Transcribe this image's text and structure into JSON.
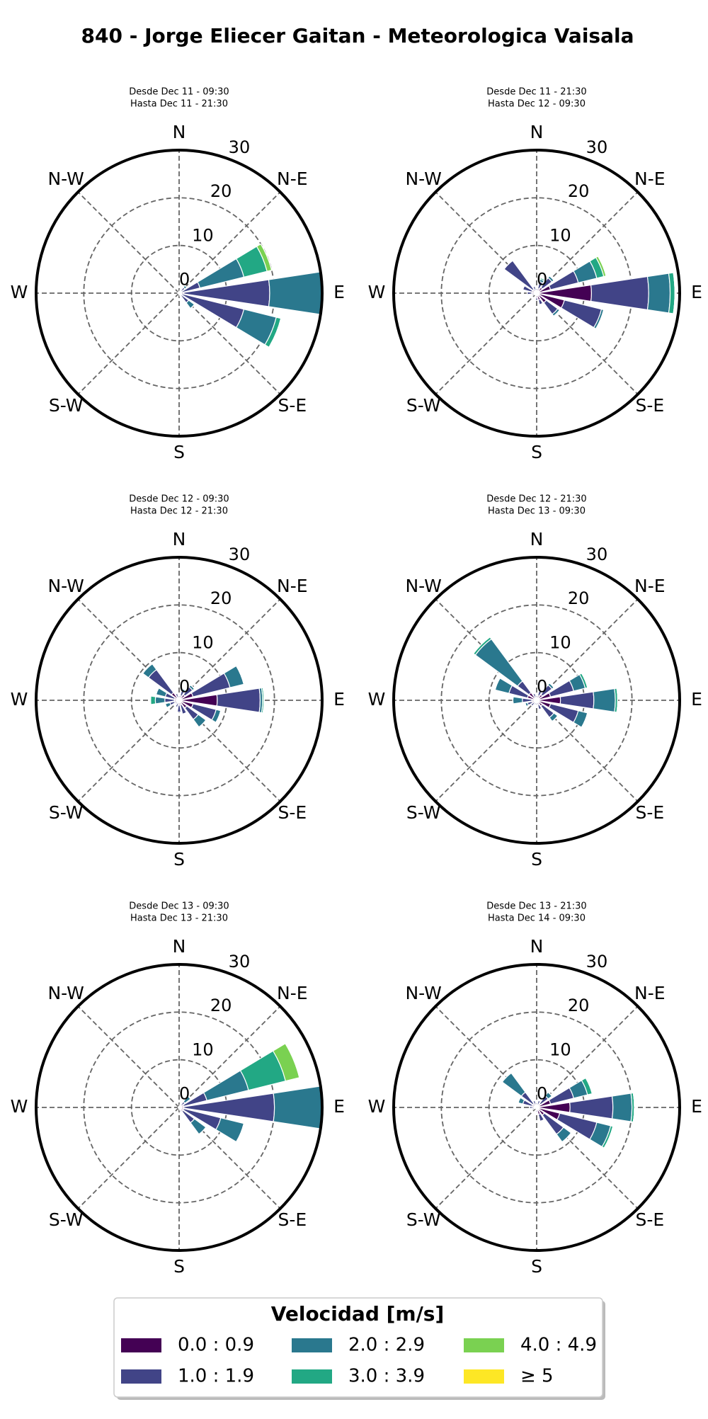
{
  "title": "840 - Jorge Eliecer Gaitan - Meteorologica Vaisala",
  "legend_title": "Velocidad [m/s]",
  "chart_data": [
    {
      "type": "windrose",
      "subtitle": [
        "Desde Dec 11 - 09:30",
        "Hasta Dec 11 - 21:30"
      ],
      "categories": [
        "N",
        null,
        "N-E",
        null,
        "E",
        null,
        "S-E",
        null,
        "S",
        null,
        "S-W",
        null,
        "W",
        null,
        "N-W",
        null
      ],
      "ylim": [
        0,
        30
      ],
      "yticks": [
        0,
        10,
        20,
        30
      ],
      "series": [
        {
          "name": "0.0 : 0.9",
          "color": "#440154",
          "values": [
            0.3,
            0.3,
            0.5,
            0.5,
            1,
            0.5,
            0.5,
            0.3,
            0.3,
            0.2,
            0.2,
            0.2,
            0.3,
            0.3,
            0.3,
            0.2
          ]
        },
        {
          "name": "1.0 : 1.9",
          "color": "#414487",
          "values": [
            0,
            0.5,
            1,
            4,
            18,
            13.5,
            2,
            0.5,
            0,
            0,
            0,
            0,
            0,
            0,
            0,
            0
          ]
        },
        {
          "name": "2.0 : 2.9",
          "color": "#2a788e",
          "values": [
            0,
            0,
            0.5,
            9.5,
            11,
            7,
            1.5,
            0,
            0,
            0,
            0,
            0,
            0,
            0,
            0,
            0
          ]
        },
        {
          "name": "3.0 : 3.9",
          "color": "#22a884",
          "values": [
            0,
            0,
            0,
            5,
            0,
            1,
            0,
            0,
            0,
            0,
            0,
            0,
            0,
            0,
            0,
            0
          ]
        },
        {
          "name": "4.0 : 4.9",
          "color": "#7ad151",
          "values": [
            0,
            0,
            0,
            1,
            0,
            0,
            0,
            0,
            0,
            0,
            0,
            0,
            0,
            0,
            0,
            0
          ]
        },
        {
          "name": "≥ 5",
          "color": "#fde725",
          "values": [
            0,
            0,
            0,
            0,
            0,
            0,
            0,
            0,
            0,
            0,
            0,
            0,
            0,
            0,
            0,
            0
          ]
        }
      ]
    },
    {
      "type": "windrose",
      "subtitle": [
        "Desde Dec 11 - 21:30",
        "Hasta Dec 12 - 09:30"
      ],
      "categories": [
        "N",
        null,
        "N-E",
        null,
        "E",
        null,
        "S-E",
        null,
        "S",
        null,
        "S-W",
        null,
        "W",
        null,
        "N-W",
        null
      ],
      "ylim": [
        0,
        30
      ],
      "yticks": [
        0,
        10,
        20,
        30
      ],
      "series": [
        {
          "name": "0.0 : 0.9",
          "color": "#440154",
          "values": [
            0.5,
            1,
            1.5,
            3,
            11.5,
            6,
            2.5,
            1.5,
            1,
            0.5,
            0.5,
            0.5,
            1,
            1,
            1,
            0.5
          ]
        },
        {
          "name": "1.0 : 1.9",
          "color": "#414487",
          "values": [
            0.5,
            1.5,
            2.5,
            6,
            12,
            8,
            3,
            1,
            0.5,
            0,
            0,
            0.5,
            1,
            2,
            7.5,
            1
          ]
        },
        {
          "name": "2.0 : 2.9",
          "color": "#2a788e",
          "values": [
            0,
            0.5,
            0.5,
            4,
            4.5,
            0.5,
            0.5,
            0,
            0,
            0,
            0,
            0,
            0,
            0,
            0,
            0
          ]
        },
        {
          "name": "3.0 : 3.9",
          "color": "#22a884",
          "values": [
            0,
            0.3,
            0,
            1.5,
            1,
            0,
            0,
            0,
            0,
            0,
            0,
            0,
            0,
            0,
            0,
            0
          ]
        },
        {
          "name": "4.0 : 4.9",
          "color": "#7ad151",
          "values": [
            0,
            0,
            0,
            0.5,
            0,
            0,
            0,
            0,
            0,
            0,
            0,
            0,
            0,
            0,
            0,
            0
          ]
        },
        {
          "name": "≥ 5",
          "color": "#fde725",
          "values": [
            0,
            0,
            0,
            0,
            0,
            0,
            0,
            0,
            0,
            0,
            0,
            0,
            0,
            0,
            0,
            0
          ]
        }
      ]
    },
    {
      "type": "windrose",
      "subtitle": [
        "Desde Dec 12 - 09:30",
        "Hasta Dec 12 - 21:30"
      ],
      "categories": [
        "N",
        null,
        "N-E",
        null,
        "E",
        null,
        "S-E",
        null,
        "S",
        null,
        "S-W",
        null,
        "W",
        null,
        "N-W",
        null
      ],
      "ylim": [
        0,
        30
      ],
      "yticks": [
        0,
        10,
        20,
        30
      ],
      "series": [
        {
          "name": "0.0 : 0.9",
          "color": "#440154",
          "values": [
            0.5,
            1,
            1.5,
            3,
            8,
            3,
            2,
            1,
            1,
            0.5,
            0.5,
            1,
            1,
            1,
            2,
            0.5
          ]
        },
        {
          "name": "1.0 : 1.9",
          "color": "#414487",
          "values": [
            0.5,
            1,
            2,
            8,
            9,
            5,
            3,
            2,
            1.5,
            1,
            0.5,
            1,
            2,
            2,
            6,
            1
          ]
        },
        {
          "name": "2.0 : 2.9",
          "color": "#2a788e",
          "values": [
            0,
            0.5,
            0.5,
            3,
            0.5,
            1,
            2,
            0,
            0,
            0,
            0,
            1,
            2,
            2,
            1.5,
            0
          ]
        },
        {
          "name": "3.0 : 3.9",
          "color": "#22a884",
          "values": [
            0,
            0,
            0,
            0,
            0.3,
            0,
            0,
            0,
            0,
            0,
            0,
            0,
            1,
            0,
            0,
            0
          ]
        },
        {
          "name": "4.0 : 4.9",
          "color": "#7ad151",
          "values": [
            0,
            0,
            0,
            0,
            0,
            0,
            0,
            0,
            0,
            0,
            0,
            0,
            0,
            0,
            0,
            0
          ]
        },
        {
          "name": "≥ 5",
          "color": "#fde725",
          "values": [
            0,
            0,
            0,
            0,
            0,
            0,
            0,
            0,
            0,
            0,
            0,
            0,
            0,
            0,
            0,
            0
          ]
        }
      ]
    },
    {
      "type": "windrose",
      "subtitle": [
        "Desde Dec 12 - 21:30",
        "Hasta Dec 13 - 09:30"
      ],
      "categories": [
        "N",
        null,
        "N-E",
        null,
        "E",
        null,
        "S-E",
        null,
        "S",
        null,
        "S-W",
        null,
        "W",
        null,
        "N-W",
        null
      ],
      "ylim": [
        0,
        30
      ],
      "yticks": [
        0,
        10,
        20,
        30
      ],
      "series": [
        {
          "name": "0.0 : 0.9",
          "color": "#440154",
          "values": [
            0.5,
            1,
            1.5,
            3,
            5,
            3,
            1.5,
            1,
            0.5,
            0.5,
            0.5,
            1,
            1,
            2,
            2,
            0.5
          ]
        },
        {
          "name": "1.0 : 1.9",
          "color": "#414487",
          "values": [
            0.5,
            1,
            2.5,
            5,
            7,
            6,
            3,
            1,
            0.5,
            0.5,
            1,
            1,
            2,
            4,
            3,
            1
          ]
        },
        {
          "name": "2.0 : 2.9",
          "color": "#2a788e",
          "values": [
            0,
            0,
            0.5,
            2.5,
            4.5,
            2,
            1,
            0,
            0,
            0,
            0,
            0.5,
            2,
            3,
            11,
            0
          ]
        },
        {
          "name": "3.0 : 3.9",
          "color": "#22a884",
          "values": [
            0,
            0,
            0,
            0.5,
            0.5,
            0,
            0,
            0,
            0,
            0,
            0,
            0,
            0,
            0,
            0.5,
            0
          ]
        },
        {
          "name": "4.0 : 4.9",
          "color": "#7ad151",
          "values": [
            0,
            0,
            0,
            0,
            0,
            0,
            0,
            0,
            0,
            0,
            0,
            0,
            0,
            0,
            0,
            0
          ]
        },
        {
          "name": "≥ 5",
          "color": "#fde725",
          "values": [
            0,
            0,
            0,
            0,
            0,
            0,
            0,
            0,
            0,
            0,
            0,
            0,
            0,
            0,
            0,
            0
          ]
        }
      ]
    },
    {
      "type": "windrose",
      "subtitle": [
        "Desde Dec 13 - 09:30",
        "Hasta Dec 13 - 21:30"
      ],
      "categories": [
        "N",
        null,
        "N-E",
        null,
        "E",
        null,
        "S-E",
        null,
        "S",
        null,
        "S-W",
        null,
        "W",
        null,
        "N-W",
        null
      ],
      "ylim": [
        0,
        30
      ],
      "yticks": [
        0,
        10,
        20,
        30
      ],
      "series": [
        {
          "name": "0.0 : 0.9",
          "color": "#440154",
          "values": [
            0.2,
            0.3,
            0.5,
            1,
            1,
            1,
            1,
            0.5,
            0.3,
            0.2,
            0.2,
            0.2,
            0.2,
            0.2,
            0.2,
            0.2
          ]
        },
        {
          "name": "1.0 : 1.9",
          "color": "#414487",
          "values": [
            0,
            0.5,
            1,
            5,
            19,
            8,
            3,
            0.5,
            0,
            0,
            0,
            0,
            0,
            0,
            0,
            0
          ]
        },
        {
          "name": "2.0 : 2.9",
          "color": "#2a788e",
          "values": [
            0,
            0,
            1.5,
            9,
            10,
            5,
            3,
            0,
            0,
            0,
            0,
            0,
            0,
            0,
            0,
            0
          ]
        },
        {
          "name": "3.0 : 3.9",
          "color": "#22a884",
          "values": [
            0,
            0,
            0,
            8,
            0,
            0,
            0,
            0,
            0,
            0,
            0,
            0,
            0,
            0,
            0,
            0
          ]
        },
        {
          "name": "4.0 : 4.9",
          "color": "#7ad151",
          "values": [
            0,
            0,
            0,
            3,
            0,
            0,
            0,
            0,
            0,
            0,
            0,
            0,
            0,
            0,
            0,
            0
          ]
        },
        {
          "name": "≥ 5",
          "color": "#fde725",
          "values": [
            0,
            0,
            0,
            0,
            0,
            0,
            0,
            0,
            0,
            0,
            0,
            0,
            0,
            0,
            0,
            0
          ]
        }
      ]
    },
    {
      "type": "windrose",
      "subtitle": [
        "Desde Dec 13 - 21:30",
        "Hasta Dec 14 - 09:30"
      ],
      "categories": [
        "N",
        null,
        "N-E",
        null,
        "E",
        null,
        "S-E",
        null,
        "S",
        null,
        "S-W",
        null,
        "W",
        null,
        "N-W",
        null
      ],
      "ylim": [
        0,
        30
      ],
      "yticks": [
        0,
        10,
        20,
        30
      ],
      "series": [
        {
          "name": "0.0 : 0.9",
          "color": "#440154",
          "values": [
            0.5,
            0.5,
            1,
            3,
            7,
            5,
            2,
            1.5,
            0.5,
            0.3,
            0.3,
            0.5,
            0.5,
            1,
            1,
            0.5
          ]
        },
        {
          "name": "1.0 : 1.9",
          "color": "#414487",
          "values": [
            0.5,
            1,
            2,
            5,
            9,
            8,
            5,
            1.5,
            0.5,
            0,
            0,
            0.5,
            1,
            2,
            3,
            1
          ]
        },
        {
          "name": "2.0 : 2.9",
          "color": "#2a788e",
          "values": [
            0,
            0,
            1,
            3,
            4,
            3,
            2,
            0,
            0,
            0,
            0,
            0,
            0,
            1,
            5,
            0
          ]
        },
        {
          "name": "3.0 : 3.9",
          "color": "#22a884",
          "values": [
            0,
            0,
            0,
            1,
            0.5,
            0.5,
            0,
            0,
            0,
            0,
            0,
            0,
            0,
            0,
            0,
            0
          ]
        },
        {
          "name": "4.0 : 4.9",
          "color": "#7ad151",
          "values": [
            0,
            0,
            0,
            0,
            0,
            0,
            0,
            0,
            0,
            0,
            0,
            0,
            0,
            0,
            0,
            0
          ]
        },
        {
          "name": "≥ 5",
          "color": "#fde725",
          "values": [
            0,
            0,
            0,
            0,
            0,
            0,
            0,
            0,
            0,
            0,
            0,
            0,
            0,
            0,
            0,
            0
          ]
        }
      ]
    }
  ]
}
